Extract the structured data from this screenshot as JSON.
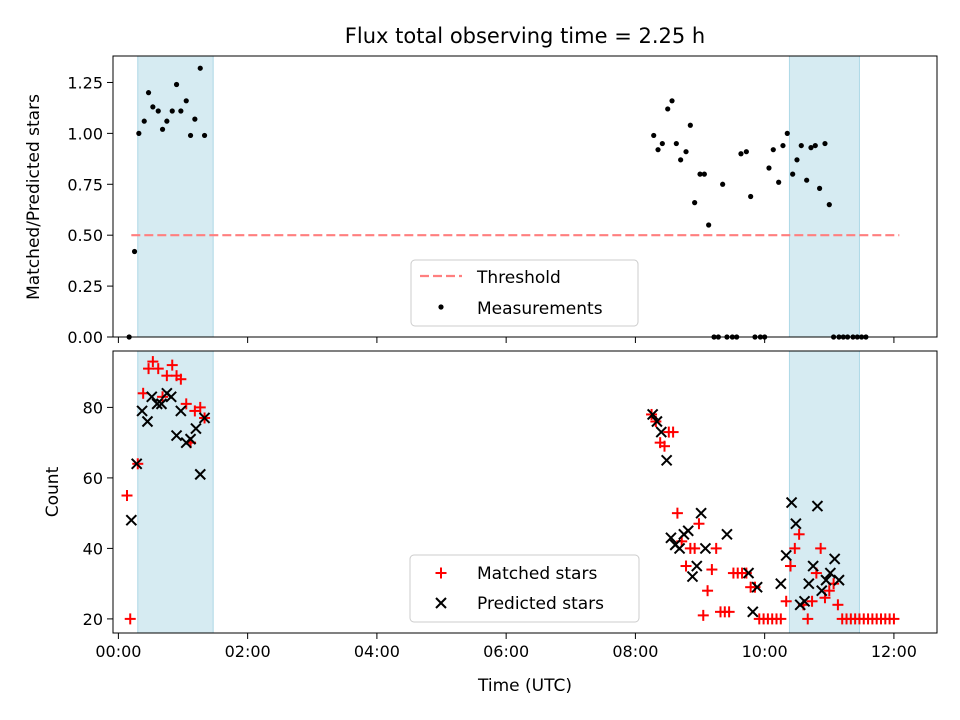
{
  "chart_data": [
    {
      "type": "scatter",
      "title": "Flux total observing time = 2.25 h",
      "xlabel": "",
      "ylabel": "Matched/Predicted stars",
      "xlim": [
        "23:55",
        "12:40"
      ],
      "ylim": [
        0,
        1.38
      ],
      "y_ticks": [
        {
          "value": 0.0,
          "label": "0.00"
        },
        {
          "value": 0.25,
          "label": "0.25"
        },
        {
          "value": 0.5,
          "label": "0.50"
        },
        {
          "value": 0.75,
          "label": "0.75"
        },
        {
          "value": 1.0,
          "label": "1.00"
        },
        {
          "value": 1.25,
          "label": "1.25"
        }
      ],
      "shaded_regions": [
        [
          "00:18",
          "01:28"
        ],
        [
          "10:23",
          "11:28"
        ]
      ],
      "threshold": {
        "name": "Threshold",
        "value": 0.5,
        "x_range": [
          "00:12",
          "12:05"
        ],
        "color": "#ff7f7f"
      },
      "series": [
        {
          "name": "Measurements",
          "color": "#000000",
          "points": [
            [
              "00:10",
              0.0
            ],
            [
              "00:15",
              0.42
            ],
            [
              "00:19",
              1.0
            ],
            [
              "00:24",
              1.06
            ],
            [
              "00:28",
              1.2
            ],
            [
              "00:32",
              1.13
            ],
            [
              "00:37",
              1.11
            ],
            [
              "00:41",
              1.02
            ],
            [
              "00:45",
              1.06
            ],
            [
              "00:50",
              1.11
            ],
            [
              "00:54",
              1.24
            ],
            [
              "00:58",
              1.11
            ],
            [
              "01:03",
              1.16
            ],
            [
              "01:07",
              0.99
            ],
            [
              "01:11",
              1.07
            ],
            [
              "01:16",
              1.32
            ],
            [
              "01:20",
              0.99
            ],
            [
              "08:17",
              0.99
            ],
            [
              "08:21",
              0.92
            ],
            [
              "08:25",
              0.95
            ],
            [
              "08:30",
              1.12
            ],
            [
              "08:34",
              1.16
            ],
            [
              "08:38",
              0.95
            ],
            [
              "08:42",
              0.87
            ],
            [
              "08:47",
              0.91
            ],
            [
              "08:51",
              1.04
            ],
            [
              "08:55",
              0.66
            ],
            [
              "09:00",
              0.8
            ],
            [
              "09:04",
              0.8
            ],
            [
              "09:08",
              0.55
            ],
            [
              "09:13",
              0.0
            ],
            [
              "09:17",
              0.0
            ],
            [
              "09:21",
              0.75
            ],
            [
              "09:25",
              0.0
            ],
            [
              "09:30",
              0.0
            ],
            [
              "09:34",
              0.0
            ],
            [
              "09:38",
              0.9
            ],
            [
              "09:43",
              0.91
            ],
            [
              "09:47",
              0.69
            ],
            [
              "09:51",
              0.0
            ],
            [
              "09:56",
              0.0
            ],
            [
              "10:00",
              0.0
            ],
            [
              "10:04",
              0.83
            ],
            [
              "10:08",
              0.92
            ],
            [
              "10:13",
              0.76
            ],
            [
              "10:17",
              0.94
            ],
            [
              "10:21",
              1.0
            ],
            [
              "10:26",
              0.8
            ],
            [
              "10:30",
              0.87
            ],
            [
              "10:34",
              0.94
            ],
            [
              "10:39",
              0.77
            ],
            [
              "10:43",
              0.93
            ],
            [
              "10:47",
              0.94
            ],
            [
              "10:51",
              0.73
            ],
            [
              "10:56",
              0.95
            ],
            [
              "11:00",
              0.65
            ],
            [
              "11:04",
              0.0
            ],
            [
              "11:09",
              0.0
            ],
            [
              "11:13",
              0.0
            ],
            [
              "11:17",
              0.0
            ],
            [
              "11:22",
              0.0
            ],
            [
              "11:26",
              0.0
            ],
            [
              "11:30",
              0.0
            ],
            [
              "11:34",
              0.0
            ]
          ]
        }
      ],
      "legend": {
        "position": "bottom-center",
        "entries": [
          "Threshold",
          "Measurements"
        ]
      }
    },
    {
      "type": "scatter",
      "title": "",
      "xlabel": "Time (UTC)",
      "ylabel": "Count",
      "xlim": [
        "23:55",
        "12:40"
      ],
      "ylim": [
        16,
        96
      ],
      "x_ticks": [
        {
          "value": "00:00",
          "label": "00:00"
        },
        {
          "value": "02:00",
          "label": "02:00"
        },
        {
          "value": "04:00",
          "label": "04:00"
        },
        {
          "value": "06:00",
          "label": "06:00"
        },
        {
          "value": "08:00",
          "label": "08:00"
        },
        {
          "value": "10:00",
          "label": "10:00"
        },
        {
          "value": "12:00",
          "label": "12:00"
        }
      ],
      "y_ticks": [
        {
          "value": 20,
          "label": "20"
        },
        {
          "value": 40,
          "label": "40"
        },
        {
          "value": 60,
          "label": "60"
        },
        {
          "value": 80,
          "label": "80"
        }
      ],
      "shaded_regions": [
        [
          "00:18",
          "01:28"
        ],
        [
          "10:23",
          "11:28"
        ]
      ],
      "series": [
        {
          "name": "Matched stars",
          "marker": "plus",
          "color": "#ff0000",
          "points": [
            [
              "00:08",
              55
            ],
            [
              "00:11",
              20
            ],
            [
              "00:18",
              64
            ],
            [
              "00:23",
              84
            ],
            [
              "00:28",
              91
            ],
            [
              "00:32",
              93
            ],
            [
              "00:37",
              91
            ],
            [
              "00:41",
              83
            ],
            [
              "00:45",
              89
            ],
            [
              "00:50",
              92
            ],
            [
              "00:54",
              89
            ],
            [
              "00:58",
              88
            ],
            [
              "01:03",
              81
            ],
            [
              "01:07",
              70
            ],
            [
              "01:11",
              79
            ],
            [
              "01:16",
              80
            ],
            [
              "01:20",
              77
            ],
            [
              "08:15",
              78
            ],
            [
              "08:19",
              76
            ],
            [
              "08:23",
              70
            ],
            [
              "08:27",
              69
            ],
            [
              "08:31",
              73
            ],
            [
              "08:35",
              73
            ],
            [
              "08:39",
              50
            ],
            [
              "08:43",
              42
            ],
            [
              "08:47",
              35
            ],
            [
              "08:51",
              40
            ],
            [
              "08:55",
              40
            ],
            [
              "08:59",
              47
            ],
            [
              "09:03",
              21
            ],
            [
              "09:07",
              28
            ],
            [
              "09:11",
              34
            ],
            [
              "09:15",
              40
            ],
            [
              "09:19",
              22
            ],
            [
              "09:23",
              22
            ],
            [
              "09:27",
              22
            ],
            [
              "09:31",
              33
            ],
            [
              "09:35",
              33
            ],
            [
              "09:39",
              33
            ],
            [
              "09:43",
              33
            ],
            [
              "09:47",
              29
            ],
            [
              "09:51",
              29
            ],
            [
              "09:55",
              20
            ],
            [
              "09:59",
              20
            ],
            [
              "10:03",
              20
            ],
            [
              "10:07",
              20
            ],
            [
              "10:11",
              20
            ],
            [
              "10:15",
              20
            ],
            [
              "10:20",
              25
            ],
            [
              "10:24",
              35
            ],
            [
              "10:28",
              40
            ],
            [
              "10:32",
              44
            ],
            [
              "10:36",
              24
            ],
            [
              "10:40",
              20
            ],
            [
              "10:44",
              25
            ],
            [
              "10:48",
              33
            ],
            [
              "10:52",
              40
            ],
            [
              "10:56",
              26
            ],
            [
              "11:00",
              28
            ],
            [
              "11:04",
              30
            ],
            [
              "11:08",
              24
            ],
            [
              "11:12",
              20
            ],
            [
              "11:16",
              20
            ],
            [
              "11:20",
              20
            ],
            [
              "11:24",
              20
            ],
            [
              "11:28",
              20
            ],
            [
              "11:32",
              20
            ],
            [
              "11:36",
              20
            ],
            [
              "11:40",
              20
            ],
            [
              "11:44",
              20
            ],
            [
              "11:48",
              20
            ],
            [
              "11:52",
              20
            ],
            [
              "11:56",
              20
            ],
            [
              "12:00",
              20
            ]
          ]
        },
        {
          "name": "Predicted stars",
          "marker": "x",
          "color": "#000000",
          "points": [
            [
              "00:12",
              48
            ],
            [
              "00:17",
              64
            ],
            [
              "00:22",
              79
            ],
            [
              "00:27",
              76
            ],
            [
              "00:31",
              83
            ],
            [
              "00:36",
              81
            ],
            [
              "00:40",
              81
            ],
            [
              "00:45",
              84
            ],
            [
              "00:49",
              83
            ],
            [
              "00:54",
              72
            ],
            [
              "00:58",
              79
            ],
            [
              "01:03",
              70
            ],
            [
              "01:07",
              71
            ],
            [
              "01:12",
              74
            ],
            [
              "01:16",
              61
            ],
            [
              "01:20",
              77
            ],
            [
              "08:16",
              78
            ],
            [
              "08:20",
              76
            ],
            [
              "08:24",
              73
            ],
            [
              "08:29",
              65
            ],
            [
              "08:33",
              43
            ],
            [
              "08:37",
              41
            ],
            [
              "08:41",
              40
            ],
            [
              "08:45",
              44
            ],
            [
              "08:49",
              45
            ],
            [
              "08:53",
              32
            ],
            [
              "08:57",
              35
            ],
            [
              "09:01",
              50
            ],
            [
              "09:05",
              40
            ],
            [
              "09:25",
              44
            ],
            [
              "09:45",
              33
            ],
            [
              "09:49",
              22
            ],
            [
              "09:53",
              29
            ],
            [
              "10:15",
              30
            ],
            [
              "10:20",
              38
            ],
            [
              "10:25",
              53
            ],
            [
              "10:29",
              47
            ],
            [
              "10:33",
              24
            ],
            [
              "10:37",
              25
            ],
            [
              "10:41",
              30
            ],
            [
              "10:45",
              35
            ],
            [
              "10:49",
              52
            ],
            [
              "10:53",
              28
            ],
            [
              "10:57",
              31
            ],
            [
              "11:01",
              33
            ],
            [
              "11:05",
              37
            ],
            [
              "11:09",
              31
            ]
          ]
        }
      ],
      "legend": {
        "position": "bottom-center",
        "entries": [
          "Matched stars",
          "Predicted stars"
        ]
      }
    }
  ]
}
